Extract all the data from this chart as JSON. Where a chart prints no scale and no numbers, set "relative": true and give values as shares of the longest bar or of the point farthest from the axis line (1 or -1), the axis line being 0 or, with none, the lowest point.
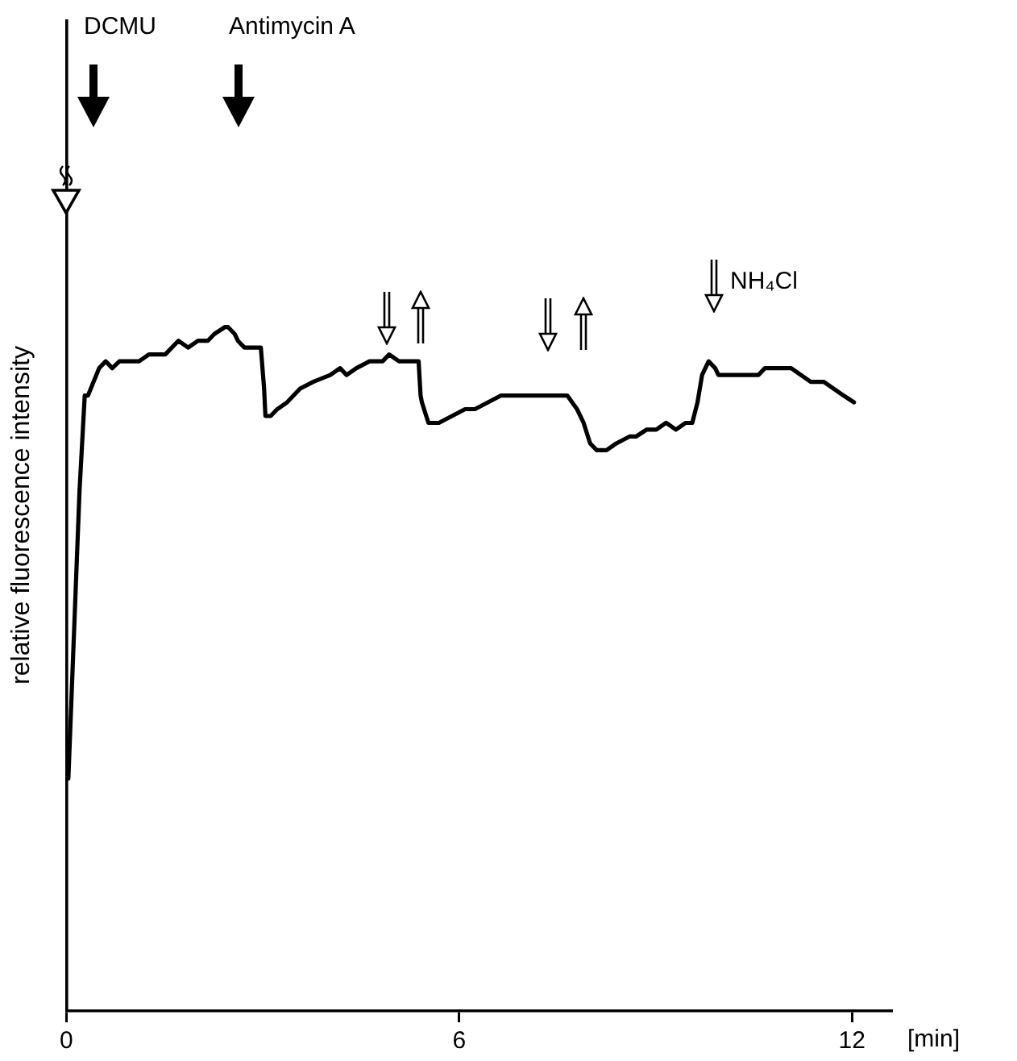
{
  "chart_data": {
    "type": "line",
    "relative": true,
    "xlabel": "[min]",
    "ylabel": "relative fluorescence intensity",
    "xlim": [
      0,
      12.6
    ],
    "xticks": [
      0,
      6,
      12
    ],
    "grid": false,
    "legend": false,
    "marker": "none",
    "line_style": "solid",
    "annotations": [
      "DCMU",
      "Antimycin A",
      "NH₄Cl"
    ],
    "series": [
      {
        "color": "#000000",
        "x": [
          0.03,
          0.2,
          0.28,
          0.33,
          0.5,
          0.6,
          0.7,
          0.81,
          0.91,
          1.01,
          1.11,
          1.26,
          1.41,
          1.51,
          1.71,
          1.86,
          2.01,
          2.16,
          2.26,
          2.42,
          2.47,
          2.57,
          2.62,
          2.72,
          2.87,
          2.97,
          3.02,
          3.04,
          3.12,
          3.22,
          3.37,
          3.57,
          3.77,
          4.03,
          4.18,
          4.28,
          4.43,
          4.63,
          4.83,
          4.93,
          5.08,
          5.23,
          5.38,
          5.41,
          5.43,
          5.53,
          5.69,
          5.89,
          6.09,
          6.24,
          6.44,
          6.64,
          6.84,
          7.04,
          7.25,
          7.4,
          7.5,
          7.65,
          7.8,
          7.9,
          8.0,
          8.1,
          8.25,
          8.4,
          8.6,
          8.7,
          8.86,
          9.01,
          9.16,
          9.31,
          9.46,
          9.56,
          9.64,
          9.71,
          9.81,
          9.91,
          9.96,
          10.06,
          10.26,
          10.42,
          10.57,
          10.67,
          10.82,
          10.97,
          11.07,
          11.22,
          11.37,
          11.47,
          11.57,
          11.72,
          11.87,
          12.03
        ],
        "values": [
          0.34,
          0.76,
          0.9,
          0.9,
          0.94,
          0.95,
          0.94,
          0.95,
          0.95,
          0.95,
          0.95,
          0.96,
          0.96,
          0.96,
          0.98,
          0.97,
          0.98,
          0.98,
          0.99,
          1.0,
          1.0,
          0.99,
          0.98,
          0.97,
          0.97,
          0.97,
          0.91,
          0.87,
          0.87,
          0.88,
          0.89,
          0.91,
          0.92,
          0.93,
          0.94,
          0.93,
          0.94,
          0.95,
          0.95,
          0.96,
          0.95,
          0.95,
          0.95,
          0.9,
          0.89,
          0.86,
          0.86,
          0.87,
          0.88,
          0.88,
          0.89,
          0.9,
          0.9,
          0.9,
          0.9,
          0.9,
          0.9,
          0.9,
          0.88,
          0.86,
          0.83,
          0.82,
          0.82,
          0.83,
          0.84,
          0.84,
          0.85,
          0.85,
          0.86,
          0.85,
          0.86,
          0.86,
          0.89,
          0.93,
          0.95,
          0.94,
          0.93,
          0.93,
          0.93,
          0.93,
          0.93,
          0.94,
          0.94,
          0.94,
          0.94,
          0.93,
          0.92,
          0.92,
          0.92,
          0.91,
          0.9,
          0.89
        ]
      }
    ]
  }
}
